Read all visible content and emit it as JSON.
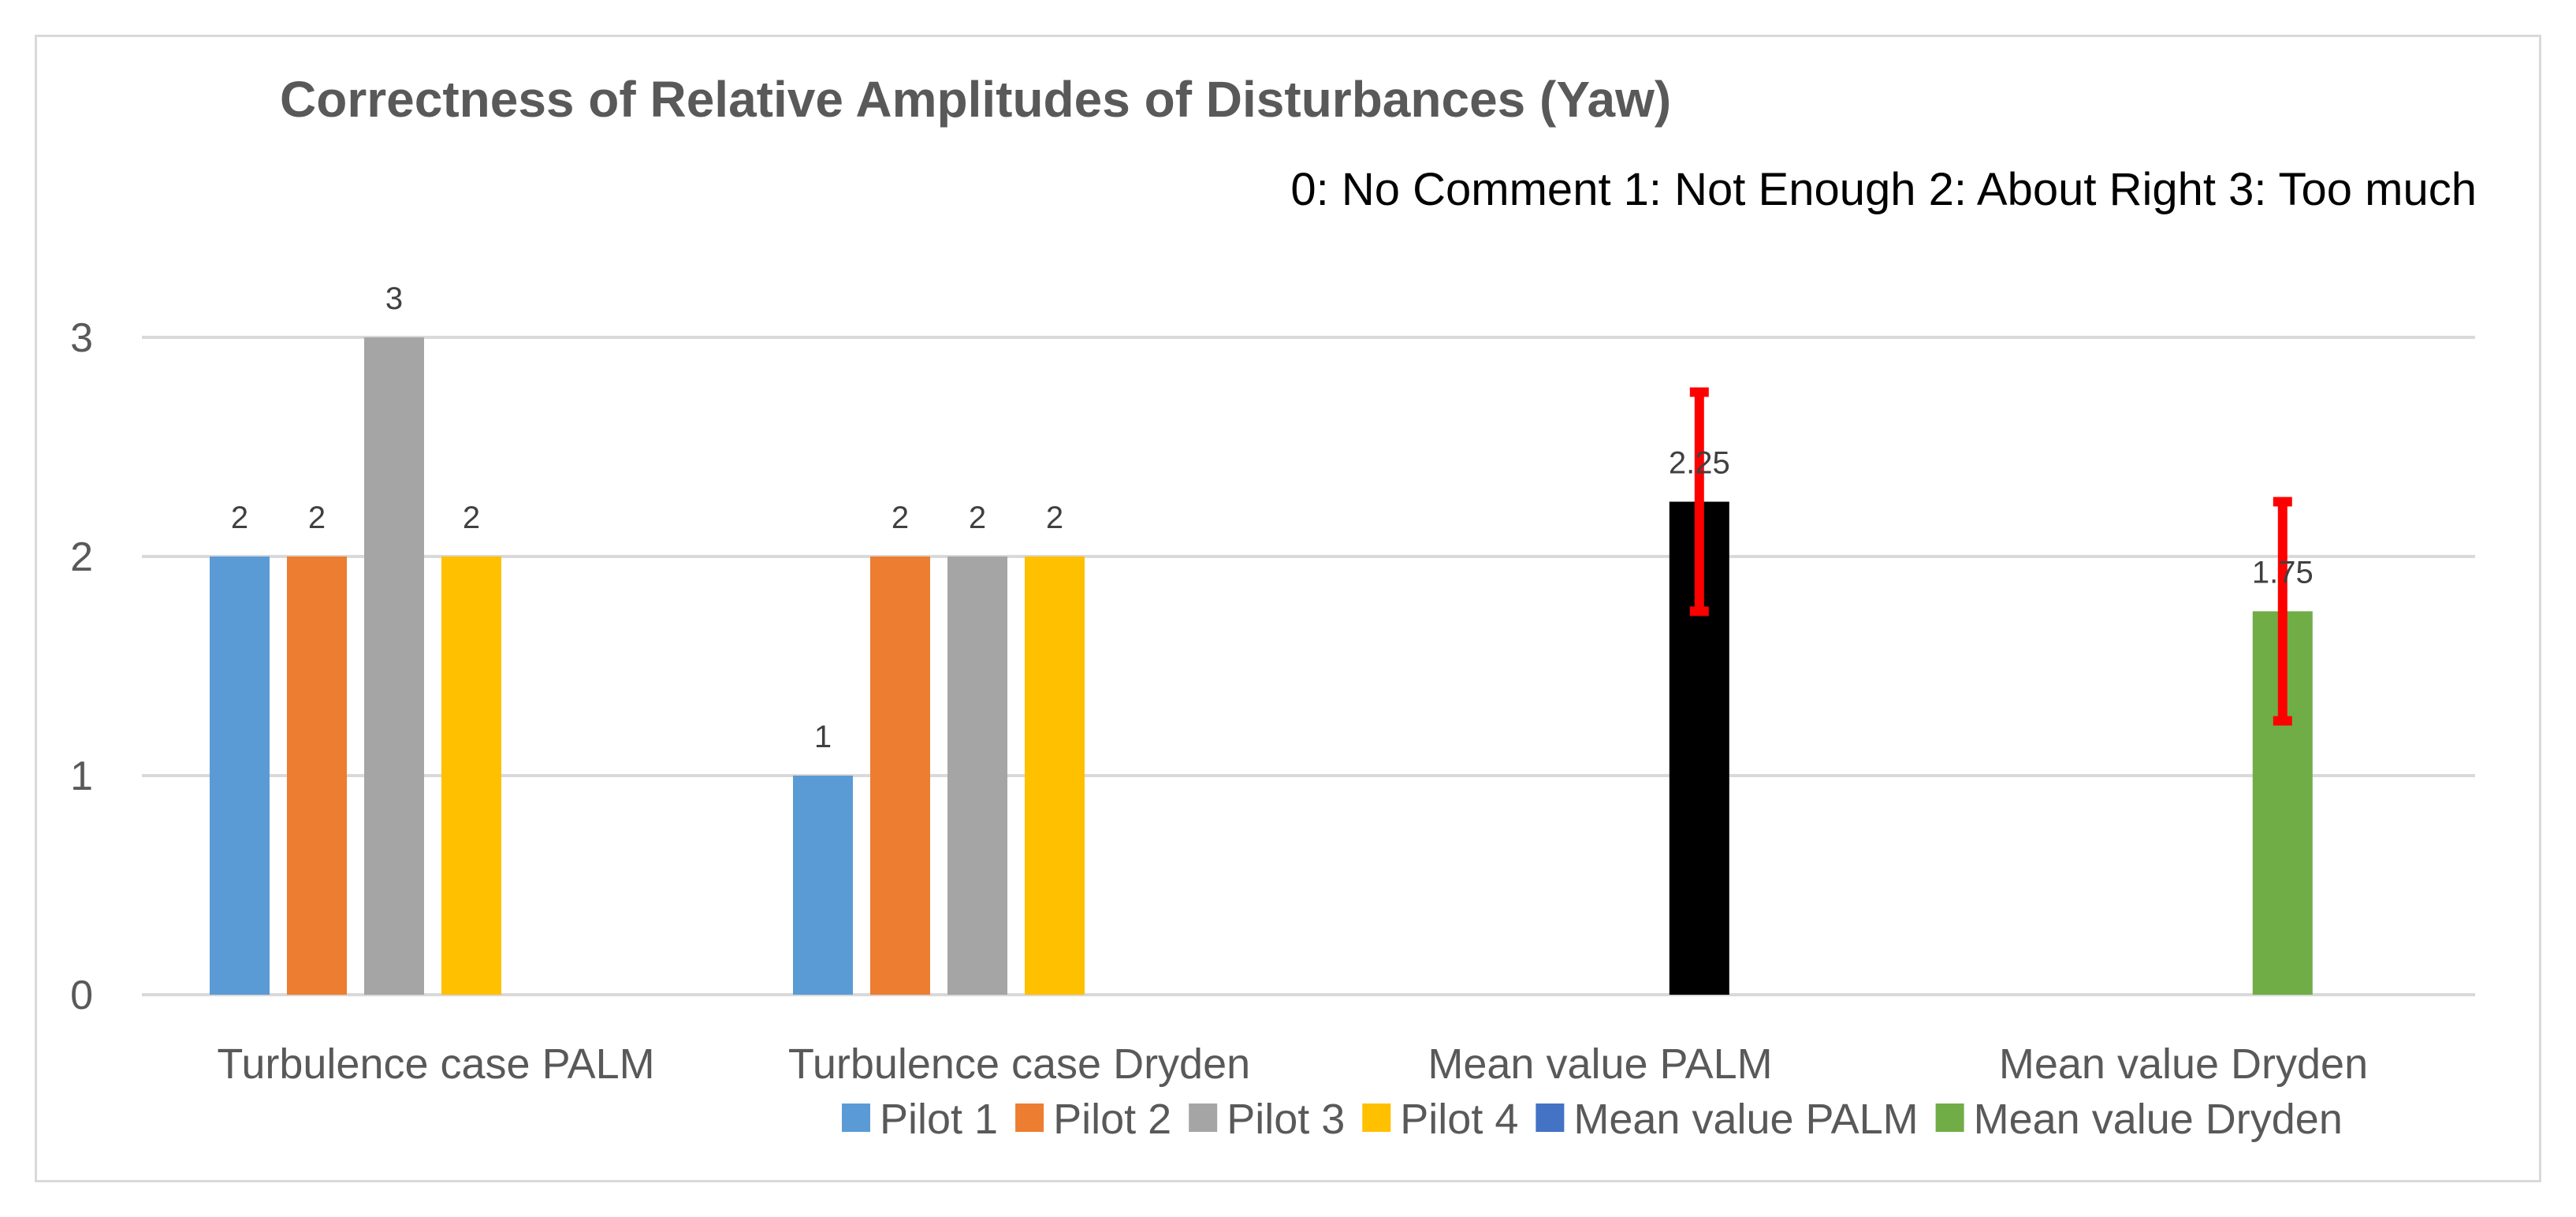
{
  "chart_data": {
    "type": "bar",
    "title": "Correctness of Relative Amplitudes of Disturbances (Yaw)",
    "subtitle": "0:  No Comment  1: Not Enough 2: About Right 3: Too much",
    "categories": [
      "Turbulence case PALM",
      "Turbulence case Dryden",
      "Mean value PALM",
      "Mean value Dryden"
    ],
    "ylim": [
      0,
      3
    ],
    "yticks": [
      "0",
      "1",
      "2",
      "3"
    ],
    "ytick_values": [
      0,
      1,
      2,
      3
    ],
    "series": [
      {
        "name": "Pilot 1",
        "color": "#5b9bd5",
        "values": [
          2,
          1,
          null,
          null
        ],
        "labels": [
          "2",
          "1",
          "",
          ""
        ]
      },
      {
        "name": "Pilot 2",
        "color": "#ed7d31",
        "values": [
          2,
          2,
          null,
          null
        ],
        "labels": [
          "2",
          "2",
          "",
          ""
        ]
      },
      {
        "name": "Pilot 3",
        "color": "#a5a5a5",
        "values": [
          3,
          2,
          null,
          null
        ],
        "labels": [
          "3",
          "2",
          "",
          ""
        ]
      },
      {
        "name": "Pilot 4",
        "color": "#ffc000",
        "values": [
          2,
          2,
          null,
          null
        ],
        "labels": [
          "2",
          "2",
          "",
          ""
        ]
      },
      {
        "name": "Mean value PALM",
        "color": "#4472c4",
        "values": [
          null,
          null,
          2.25,
          null
        ],
        "labels": [
          "",
          "",
          "2.25",
          ""
        ],
        "bar_color": "#000000",
        "error": [
          null,
          null,
          0.5,
          null
        ]
      },
      {
        "name": "Mean value Dryden",
        "color": "#70ad47",
        "values": [
          null,
          null,
          null,
          1.75
        ],
        "labels": [
          "",
          "",
          "",
          "1.75"
        ],
        "error": [
          null,
          null,
          null,
          0.5
        ]
      }
    ],
    "error_bar_color": "#ff0000",
    "grid": true,
    "legend": "bottom"
  }
}
